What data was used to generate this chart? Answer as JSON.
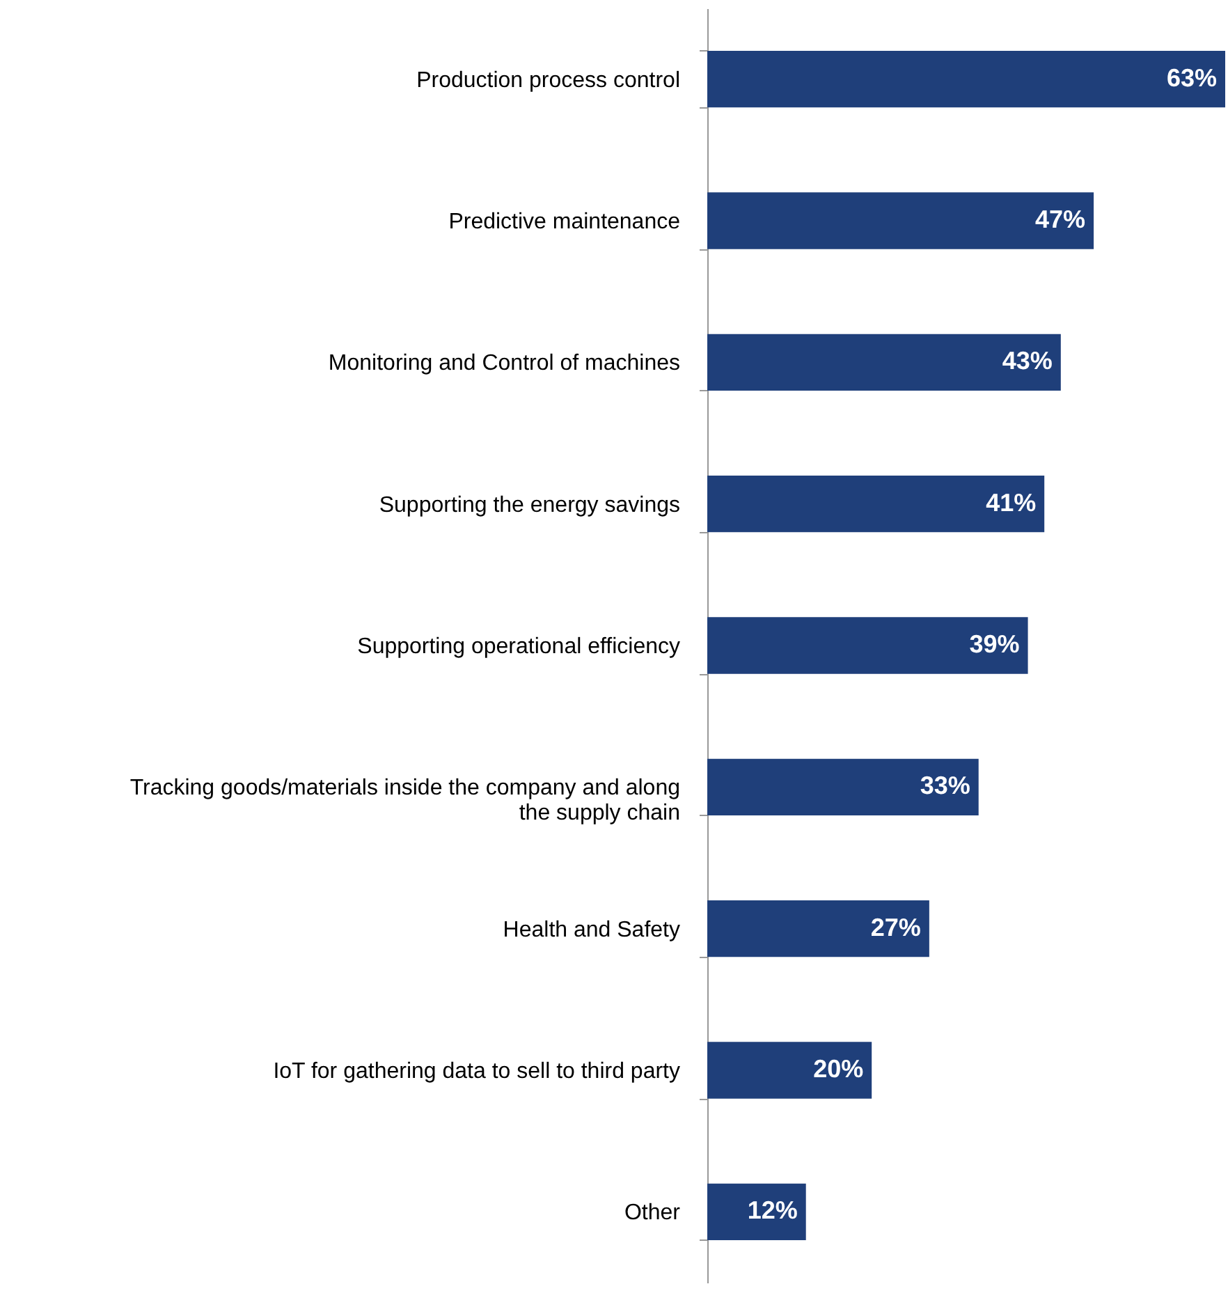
{
  "chart_data": {
    "type": "bar",
    "orientation": "horizontal",
    "categories": [
      "Production process control",
      "Predictive maintenance",
      "Monitoring and Control of machines",
      "Supporting the energy savings",
      "Supporting operational efficiency",
      "Tracking goods/materials inside the company and along the supply chain",
      "Health and Safety",
      "IoT for gathering data to sell to third party",
      "Other"
    ],
    "values": [
      63,
      47,
      43,
      41,
      39,
      33,
      27,
      20,
      12
    ],
    "color": "#1f3f7a",
    "value_labels": [
      "63%",
      "47%",
      "43%",
      "41%",
      "39%",
      "33%",
      "27%",
      "20%",
      "12%"
    ],
    "grid": false
  }
}
